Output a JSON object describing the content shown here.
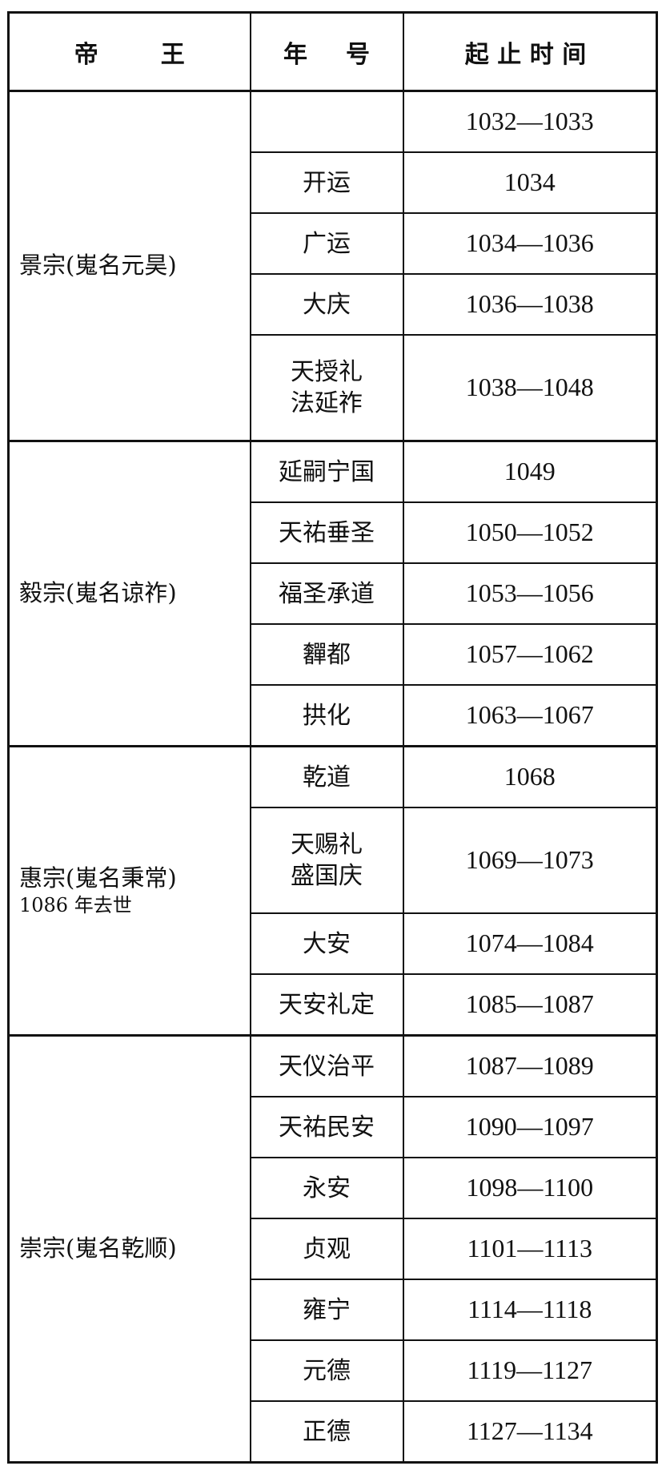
{
  "headers": {
    "emperor": [
      "帝",
      "王"
    ],
    "era": [
      "年",
      "号"
    ],
    "period": "起止时间"
  },
  "groups": [
    {
      "emperor": "景宗(嵬名元昊)",
      "note": "",
      "eras": [
        {
          "name": "",
          "years": "1032—1033"
        },
        {
          "name": "开运",
          "years": "1034"
        },
        {
          "name": "广运",
          "years": "1034—1036"
        },
        {
          "name": "大庆",
          "years": "1036—1038"
        },
        {
          "name": "天授礼法延祚",
          "years": "1038—1048"
        }
      ]
    },
    {
      "emperor": "毅宗(嵬名谅祚)",
      "note": "",
      "eras": [
        {
          "name": "延嗣宁国",
          "years": "1049"
        },
        {
          "name": "天祐垂圣",
          "years": "1050—1052"
        },
        {
          "name": "福圣承道",
          "years": "1053—1056"
        },
        {
          "name": "奲都",
          "years": "1057—1062"
        },
        {
          "name": "拱化",
          "years": "1063—1067"
        }
      ]
    },
    {
      "emperor": "惠宗(嵬名秉常)",
      "note": "1086 年去世",
      "eras": [
        {
          "name": "乾道",
          "years": "1068"
        },
        {
          "name": "天赐礼盛国庆",
          "years": "1069—1073"
        },
        {
          "name": "大安",
          "years": "1074—1084"
        },
        {
          "name": "天安礼定",
          "years": "1085—1087"
        }
      ]
    },
    {
      "emperor": "崇宗(嵬名乾顺)",
      "note": "",
      "eras": [
        {
          "name": "天仪治平",
          "years": "1087—1089"
        },
        {
          "name": "天祐民安",
          "years": "1090—1097"
        },
        {
          "name": "永安",
          "years": "1098—1100"
        },
        {
          "name": "贞观",
          "years": "1101—1113"
        },
        {
          "name": "雍宁",
          "years": "1114—1118"
        },
        {
          "name": "元德",
          "years": "1119—1127"
        },
        {
          "name": "正德",
          "years": "1127—1134"
        }
      ]
    }
  ]
}
